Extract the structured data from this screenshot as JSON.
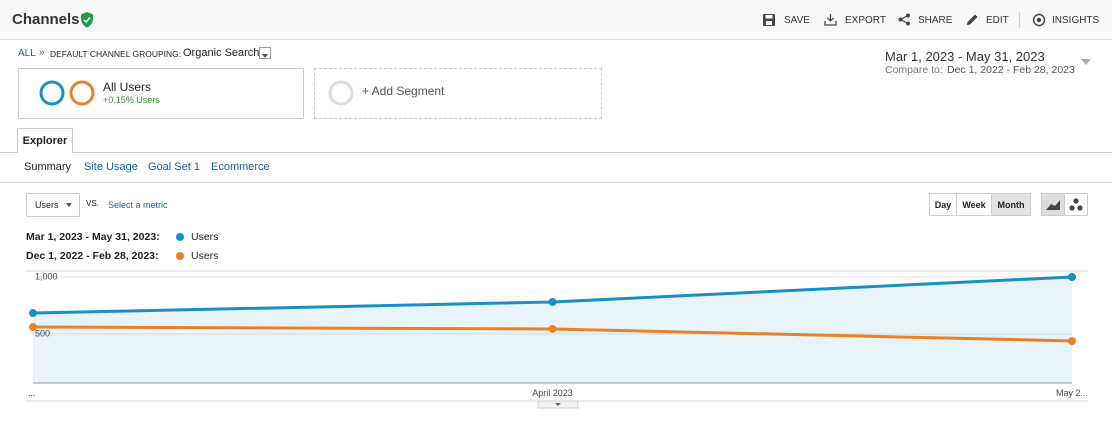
{
  "header": {
    "title": "Channels",
    "actions": [
      "SAVE",
      "EXPORT",
      "SHARE",
      "EDIT",
      "INSIGHTS"
    ]
  },
  "breadcrumb": {
    "root": "ALL",
    "separator": "»",
    "grouping": "DEFAULT CHANNEL GROUPING:",
    "value": "Organic Search"
  },
  "date_range": {
    "current": "Mar 1, 2023 - May 31, 2023",
    "compare_label": "Compare to:",
    "compare": "Dec 1, 2022 - Feb 28, 2023"
  },
  "segments": {
    "active": {
      "name": "All Users",
      "change": "+0.15% Users"
    },
    "add": "+ Add Segment"
  },
  "tabs": [
    "Explorer"
  ],
  "subtabs": [
    "Summary",
    "Site Usage",
    "Goal Set 1",
    "Ecommerce"
  ],
  "controls": {
    "metric": "Users",
    "vs": "VS.",
    "select_metric": "Select a metric",
    "granularity": [
      "Day",
      "Week",
      "Month"
    ]
  },
  "chart_data": {
    "type": "line",
    "categories": [
      "...",
      "April 2023",
      "May 2..."
    ],
    "series": [
      {
        "name": "Users",
        "period": "Mar 1, 2023 - May 31, 2023:",
        "color": "#1a8fc4",
        "values": [
          684,
          781,
          1000
        ]
      },
      {
        "name": "Users",
        "period": "Dec 1, 2022 - Feb 28, 2023:",
        "color": "#e8822a",
        "values": [
          561,
          544,
          439
        ]
      }
    ],
    "ylim": [
      70,
      1050
    ],
    "yticks": [
      500,
      {
        "value": 1000,
        "label": "1,000"
      }
    ],
    "grid": true
  }
}
